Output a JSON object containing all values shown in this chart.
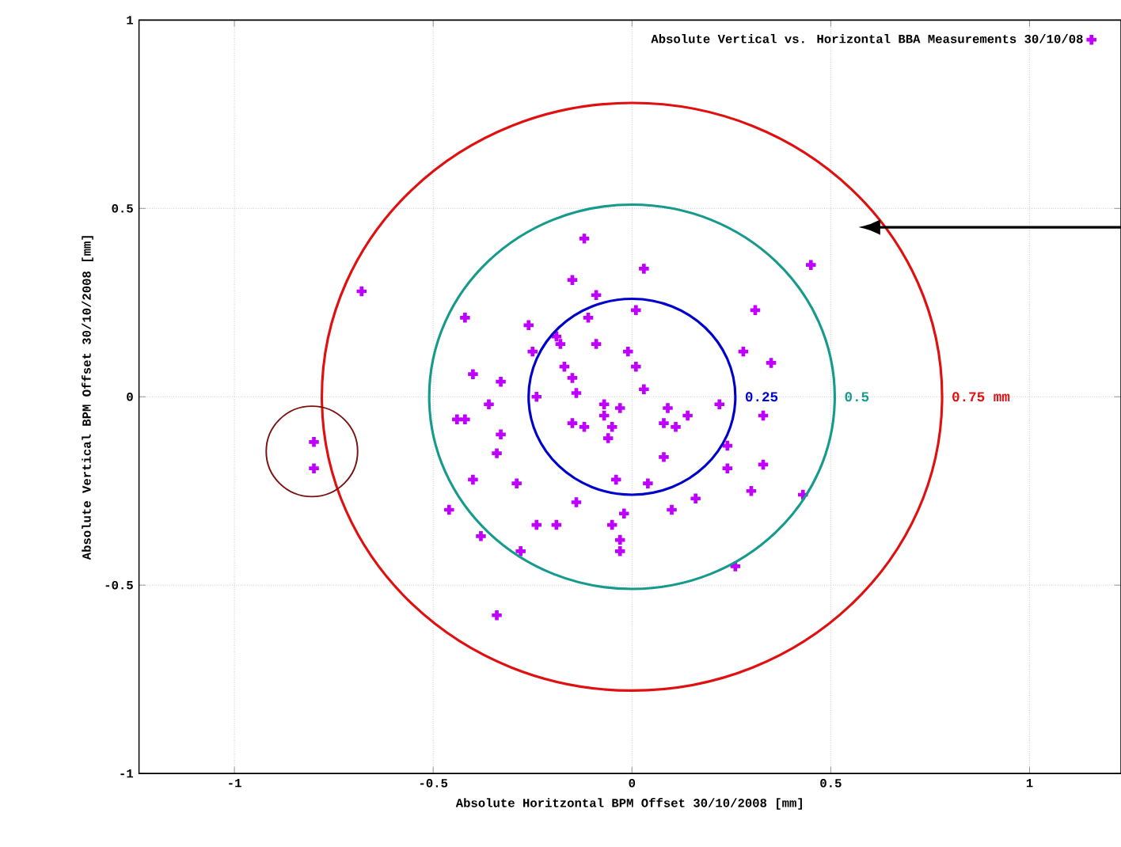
{
  "chart_data": {
    "type": "scatter",
    "xlabel": "Absolute Horitzontal BPM Offset 30/10/2008 [mm]",
    "ylabel": "Absolute Vertical BPM Offset 30/10/2008 [mm]",
    "xlim": [
      -1.24,
      1.23
    ],
    "ylim": [
      -1,
      1
    ],
    "xticks": [
      -1,
      -0.5,
      0,
      0.5,
      1
    ],
    "yticks": [
      -1,
      -0.5,
      0,
      0.5,
      1
    ],
    "grid": true,
    "legend": "top right",
    "marker": "cross",
    "annotations": [
      "0.25",
      "0.5",
      "0.75 mm"
    ],
    "series": [
      {
        "name": "Absolute Vertical vs. Horizontal BBA Measurements 30/10/08",
        "color": "#bf00ff",
        "x": [
          -0.12,
          0.03,
          -0.15,
          -0.09,
          0.01,
          -0.42,
          -0.11,
          -0.26,
          0.31,
          -0.19,
          -0.18,
          -0.09,
          -0.01,
          0.28,
          0.35,
          -0.25,
          -0.17,
          0.01,
          -0.4,
          -0.15,
          -0.33,
          0.03,
          -0.14,
          -0.24,
          -0.36,
          -0.07,
          -0.03,
          0.09,
          0.22,
          -0.44,
          -0.42,
          -0.15,
          -0.12,
          -0.07,
          -0.05,
          0.08,
          0.11,
          0.14,
          0.33,
          -0.33,
          -0.06,
          -0.34,
          0.24,
          0.08,
          0.24,
          0.33,
          -0.4,
          -0.29,
          -0.04,
          0.04,
          0.3,
          -0.46,
          -0.14,
          0.16,
          0.1,
          -0.02,
          -0.05,
          -0.24,
          -0.19,
          -0.38,
          -0.03,
          -0.03,
          -0.28,
          0.26,
          -0.34,
          0.45,
          0.43,
          -0.68,
          -0.8,
          -0.8
        ],
        "values": [
          0.42,
          0.34,
          0.31,
          0.27,
          0.23,
          0.21,
          0.21,
          0.19,
          0.23,
          0.16,
          0.14,
          0.14,
          0.12,
          0.12,
          0.09,
          0.12,
          0.08,
          0.08,
          0.06,
          0.05,
          0.04,
          0.02,
          0.01,
          0.0,
          -0.02,
          -0.02,
          -0.03,
          -0.03,
          -0.02,
          -0.06,
          -0.06,
          -0.07,
          -0.08,
          -0.05,
          -0.08,
          -0.07,
          -0.08,
          -0.05,
          -0.05,
          -0.1,
          -0.11,
          -0.15,
          -0.13,
          -0.16,
          -0.19,
          -0.18,
          -0.22,
          -0.23,
          -0.22,
          -0.23,
          -0.25,
          -0.3,
          -0.28,
          -0.27,
          -0.3,
          -0.31,
          -0.34,
          -0.34,
          -0.34,
          -0.37,
          -0.38,
          -0.41,
          -0.41,
          -0.45,
          -0.58,
          0.35,
          -0.26,
          0.28,
          -0.12,
          -0.19
        ]
      }
    ]
  }
}
